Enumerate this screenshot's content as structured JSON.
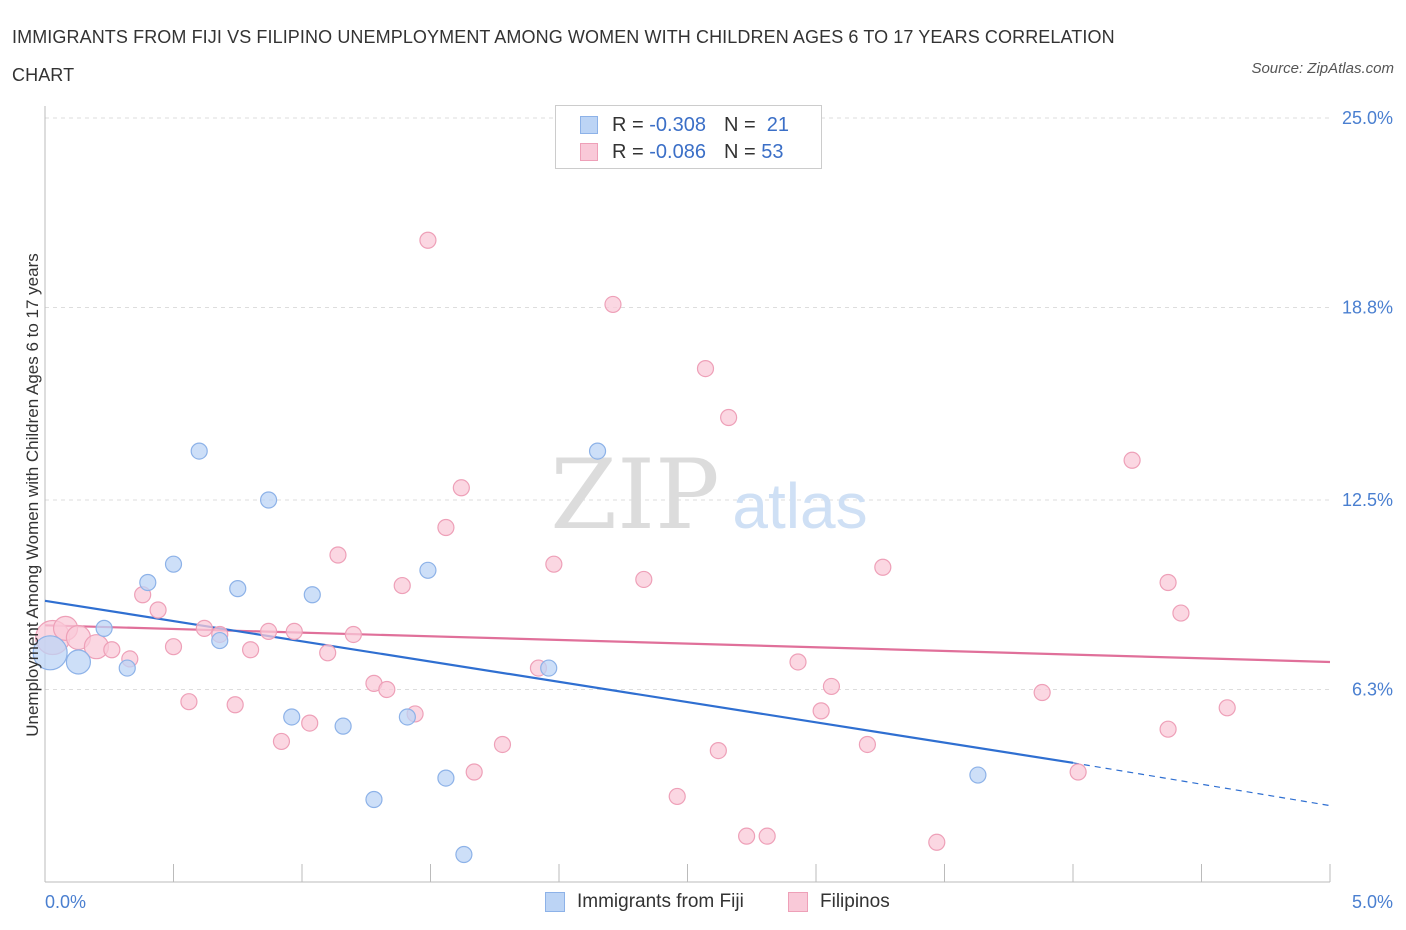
{
  "header": {
    "title": "IMMIGRANTS FROM FIJI VS FILIPINO UNEMPLOYMENT AMONG WOMEN WITH CHILDREN AGES 6 TO 17 YEARS CORRELATION CHART",
    "source": "Source: ZipAtlas.com"
  },
  "watermark": {
    "zip": "ZIP",
    "atlas": "atlas"
  },
  "legend": {
    "rows": [
      {
        "r_label": "R =",
        "r_value": "-0.308",
        "n_label": "N =",
        "n_value": "21"
      },
      {
        "r_label": "R =",
        "r_value": "-0.086",
        "n_label": "N =",
        "n_value": "53"
      }
    ]
  },
  "bottom_legend": {
    "fiji": "Immigrants from Fiji",
    "filipinos": "Filipinos"
  },
  "colors": {
    "fiji_fill": "#bcd4f5",
    "fiji_stroke": "#8db2e8",
    "fiji_line": "#2f6fd1",
    "fil_fill": "#f9c9d8",
    "fil_stroke": "#eea0b8",
    "fil_line": "#e0709a",
    "grid": "#dddddd",
    "tick_text": "#4a7fd0"
  },
  "chart_data": {
    "type": "scatter",
    "title": "IMMIGRANTS FROM FIJI VS FILIPINO UNEMPLOYMENT AMONG WOMEN WITH CHILDREN AGES 6 TO 17 YEARS CORRELATION CHART",
    "xlabel": "",
    "ylabel": "Unemployment Among Women with Children Ages 6 to 17 years",
    "xlim": [
      0,
      5
    ],
    "ylim": [
      0,
      25
    ],
    "x_ticks_labels": [
      "0.0%",
      "5.0%"
    ],
    "y_ticks": [
      6.3,
      12.5,
      18.8,
      25.0
    ],
    "y_ticks_labels": [
      "6.3%",
      "12.5%",
      "18.8%",
      "25.0%"
    ],
    "grid": true,
    "series": [
      {
        "name": "Immigrants from Fiji",
        "R": -0.308,
        "N": 21,
        "trend": {
          "x0": 0.0,
          "y0": 9.2,
          "x1": 4.0,
          "y1": 3.9,
          "dash_to_x": 5.0,
          "dash_to_y": 2.5
        },
        "points": [
          [
            0.02,
            7.5,
            "large"
          ],
          [
            0.13,
            7.2,
            "medium"
          ],
          [
            0.23,
            8.3,
            "small"
          ],
          [
            0.32,
            7.0,
            "small"
          ],
          [
            0.4,
            9.8,
            "small"
          ],
          [
            0.5,
            10.4,
            "small"
          ],
          [
            0.6,
            14.1,
            "small"
          ],
          [
            0.68,
            7.9,
            "small"
          ],
          [
            0.75,
            9.6,
            "small"
          ],
          [
            0.87,
            12.5,
            "small"
          ],
          [
            0.96,
            5.4,
            "small"
          ],
          [
            1.04,
            9.4,
            "small"
          ],
          [
            1.16,
            5.1,
            "small"
          ],
          [
            1.28,
            2.7,
            "small"
          ],
          [
            1.41,
            5.4,
            "small"
          ],
          [
            1.49,
            10.2,
            "small"
          ],
          [
            1.56,
            3.4,
            "small"
          ],
          [
            1.63,
            0.9,
            "small"
          ],
          [
            1.96,
            7.0,
            "small"
          ],
          [
            2.15,
            14.1,
            "small"
          ],
          [
            3.63,
            3.5,
            "small"
          ]
        ]
      },
      {
        "name": "Filipinos",
        "R": -0.086,
        "N": 53,
        "trend": {
          "x0": 0.0,
          "y0": 8.4,
          "x1": 5.0,
          "y1": 7.2
        },
        "points": [
          [
            0.03,
            8.0,
            "large"
          ],
          [
            0.08,
            8.3,
            "medium"
          ],
          [
            0.13,
            8.0,
            "medium"
          ],
          [
            0.2,
            7.7,
            "medium"
          ],
          [
            0.26,
            7.6,
            "small"
          ],
          [
            0.33,
            7.3,
            "small"
          ],
          [
            0.38,
            9.4,
            "small"
          ],
          [
            0.44,
            8.9,
            "small"
          ],
          [
            0.5,
            7.7,
            "small"
          ],
          [
            0.56,
            5.9,
            "small"
          ],
          [
            0.62,
            8.3,
            "small"
          ],
          [
            0.68,
            8.1,
            "small"
          ],
          [
            0.74,
            5.8,
            "small"
          ],
          [
            0.8,
            7.6,
            "small"
          ],
          [
            0.87,
            8.2,
            "small"
          ],
          [
            0.92,
            4.6,
            "small"
          ],
          [
            0.97,
            8.2,
            "small"
          ],
          [
            1.03,
            5.2,
            "small"
          ],
          [
            1.1,
            7.5,
            "small"
          ],
          [
            1.14,
            10.7,
            "small"
          ],
          [
            1.2,
            8.1,
            "small"
          ],
          [
            1.28,
            6.5,
            "small"
          ],
          [
            1.33,
            6.3,
            "small"
          ],
          [
            1.39,
            9.7,
            "small"
          ],
          [
            1.44,
            5.5,
            "small"
          ],
          [
            1.49,
            21.0,
            "small"
          ],
          [
            1.56,
            11.6,
            "small"
          ],
          [
            1.62,
            12.9,
            "small"
          ],
          [
            1.67,
            3.6,
            "small"
          ],
          [
            1.78,
            4.5,
            "small"
          ],
          [
            1.92,
            7.0,
            "small"
          ],
          [
            1.98,
            10.4,
            "small"
          ],
          [
            2.21,
            18.9,
            "small"
          ],
          [
            2.33,
            9.9,
            "small"
          ],
          [
            2.46,
            2.8,
            "small"
          ],
          [
            2.57,
            16.8,
            "small"
          ],
          [
            2.62,
            4.3,
            "small"
          ],
          [
            2.66,
            15.2,
            "small"
          ],
          [
            2.73,
            1.5,
            "small"
          ],
          [
            2.81,
            1.5,
            "small"
          ],
          [
            2.93,
            7.2,
            "small"
          ],
          [
            3.02,
            5.6,
            "small"
          ],
          [
            3.06,
            6.4,
            "small"
          ],
          [
            3.2,
            4.5,
            "small"
          ],
          [
            3.26,
            10.3,
            "small"
          ],
          [
            3.47,
            1.3,
            "small"
          ],
          [
            3.88,
            6.2,
            "small"
          ],
          [
            4.02,
            3.6,
            "small"
          ],
          [
            4.23,
            13.8,
            "small"
          ],
          [
            4.37,
            5.0,
            "small"
          ],
          [
            4.37,
            9.8,
            "small"
          ],
          [
            4.42,
            8.8,
            "small"
          ],
          [
            4.6,
            5.7,
            "small"
          ]
        ]
      }
    ]
  }
}
